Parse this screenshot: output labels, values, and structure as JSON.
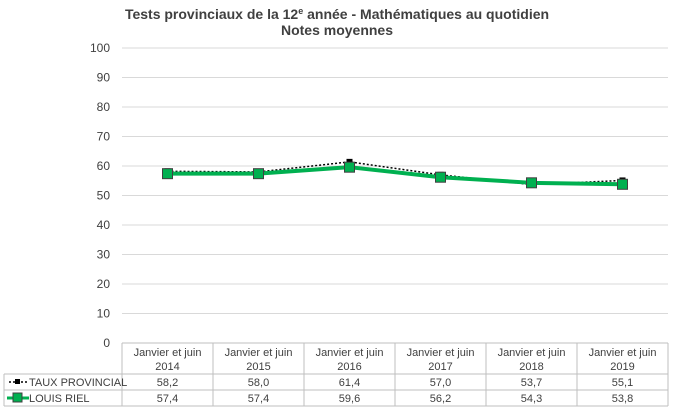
{
  "chart_data": {
    "type": "line",
    "title_parts": [
      "Tests provinciaux de la 12",
      "e",
      " année - Mathématiques au quotidien"
    ],
    "subtitle": "Notes moyennes",
    "categories": [
      [
        "Janvier et juin",
        "2014"
      ],
      [
        "Janvier et juin",
        "2015"
      ],
      [
        "Janvier et juin",
        "2016"
      ],
      [
        "Janvier et juin",
        "2017"
      ],
      [
        "Janvier et juin",
        "2018"
      ],
      [
        "Janvier et juin",
        "2019"
      ]
    ],
    "ylim": [
      0,
      100
    ],
    "yticks": [
      0,
      10,
      20,
      30,
      40,
      50,
      60,
      70,
      80,
      90,
      100
    ],
    "grid": true,
    "legend": "data-table-left",
    "series": [
      {
        "name": "TAUX PROVINCIAL",
        "values": [
          58.2,
          58.0,
          61.4,
          57.0,
          53.7,
          55.1
        ],
        "labels": [
          "58,2",
          "58,0",
          "61,4",
          "57,0",
          "53,7",
          "55,1"
        ],
        "color": "#000000",
        "style": "dotted"
      },
      {
        "name": "LOUIS RIEL",
        "values": [
          57.4,
          57.4,
          59.6,
          56.2,
          54.3,
          53.8
        ],
        "labels": [
          "57,4",
          "57,4",
          "59,6",
          "56,2",
          "54,3",
          "53,8"
        ],
        "color": "#00B050",
        "marker_color": "#404040",
        "style": "solid"
      }
    ]
  }
}
